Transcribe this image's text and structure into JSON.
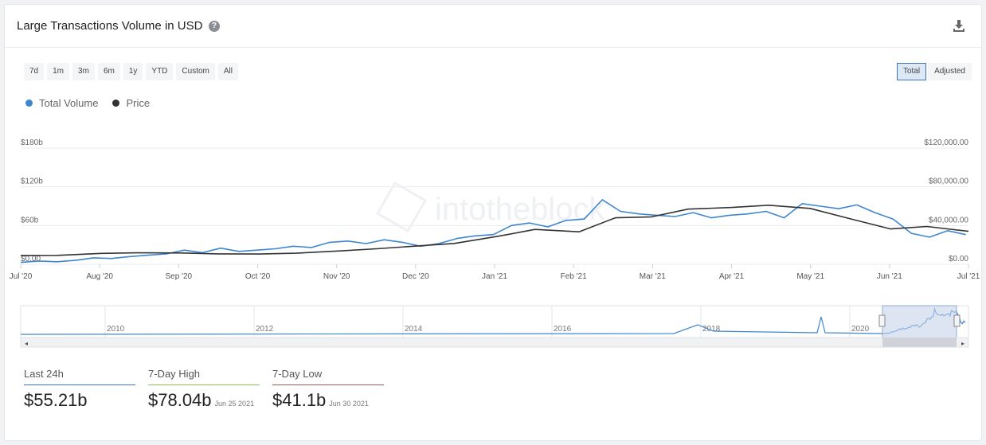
{
  "header": {
    "title": "Large Transactions Volume in USD",
    "help_glyph": "?",
    "download_icon": "download-icon"
  },
  "ranges": [
    "7d",
    "1m",
    "3m",
    "6m",
    "1y",
    "YTD",
    "Custom",
    "All"
  ],
  "toggle": {
    "options": [
      "Total",
      "Adjusted"
    ],
    "active": "Total"
  },
  "legend": [
    {
      "name": "Total Volume",
      "color": "#3f86d0"
    },
    {
      "name": "Price",
      "color": "#333333"
    }
  ],
  "watermark": "intotheblock",
  "colors": {
    "volume": "#3f86d0",
    "price": "#333333",
    "grid": "#e9ebee",
    "navigator_mask": "#c6d3ea"
  },
  "chart_data": {
    "type": "line",
    "x_range": [
      "2020-07-01",
      "2021-07-01"
    ],
    "x_ticks": [
      "Jul '20",
      "Aug '20",
      "Sep '20",
      "Oct '20",
      "Nov '20",
      "Dec '20",
      "Jan '21",
      "Feb '21",
      "Mar '21",
      "Apr '21",
      "May '21",
      "Jun '21",
      "Jul '21"
    ],
    "y_left": {
      "range": [
        0,
        180
      ],
      "ticks": [
        "$0.00",
        "$60b",
        "$120b",
        "$180b"
      ]
    },
    "y_right": {
      "range": [
        0,
        120000
      ],
      "ticks": [
        "$0.00",
        "$40,000.00",
        "$80,000.00",
        "$120,000.00"
      ]
    },
    "series": [
      {
        "name": "Total Volume",
        "axis": "left",
        "x": [
          "2020-07-01",
          "2020-07-08",
          "2020-07-15",
          "2020-07-22",
          "2020-07-29",
          "2020-08-05",
          "2020-08-12",
          "2020-08-19",
          "2020-08-26",
          "2020-09-02",
          "2020-09-09",
          "2020-09-16",
          "2020-09-23",
          "2020-09-30",
          "2020-10-07",
          "2020-10-14",
          "2020-10-21",
          "2020-10-28",
          "2020-11-04",
          "2020-11-11",
          "2020-11-18",
          "2020-11-25",
          "2020-12-02",
          "2020-12-09",
          "2020-12-16",
          "2020-12-23",
          "2020-12-30",
          "2021-01-06",
          "2021-01-13",
          "2021-01-20",
          "2021-01-27",
          "2021-02-03",
          "2021-02-10",
          "2021-02-17",
          "2021-02-24",
          "2021-03-03",
          "2021-03-10",
          "2021-03-17",
          "2021-03-24",
          "2021-03-31",
          "2021-04-07",
          "2021-04-14",
          "2021-04-21",
          "2021-04-28",
          "2021-05-05",
          "2021-05-12",
          "2021-05-19",
          "2021-05-26",
          "2021-06-02",
          "2021-06-09",
          "2021-06-16",
          "2021-06-23",
          "2021-06-30"
        ],
        "values": [
          3,
          5,
          4,
          6,
          10,
          9,
          12,
          14,
          16,
          22,
          18,
          25,
          20,
          22,
          24,
          28,
          26,
          34,
          36,
          32,
          38,
          34,
          28,
          32,
          40,
          44,
          46,
          60,
          64,
          58,
          68,
          70,
          100,
          82,
          78,
          76,
          74,
          80,
          72,
          76,
          78,
          82,
          72,
          94,
          90,
          86,
          92,
          80,
          70,
          48,
          42,
          52,
          46
        ]
      },
      {
        "name": "Price",
        "axis": "right",
        "x": [
          "2020-07-01",
          "2020-07-15",
          "2020-08-01",
          "2020-08-15",
          "2020-09-01",
          "2020-09-15",
          "2020-10-01",
          "2020-10-15",
          "2020-11-01",
          "2020-11-15",
          "2020-12-01",
          "2020-12-15",
          "2021-01-01",
          "2021-01-15",
          "2021-02-01",
          "2021-02-15",
          "2021-03-01",
          "2021-03-15",
          "2021-04-01",
          "2021-04-15",
          "2021-05-01",
          "2021-05-15",
          "2021-06-01",
          "2021-06-15",
          "2021-07-01"
        ],
        "values": [
          9100,
          9200,
          11300,
          11800,
          11700,
          10800,
          10600,
          11400,
          13800,
          16000,
          19000,
          21500,
          29000,
          36000,
          33500,
          48000,
          49000,
          57000,
          58700,
          61000,
          57700,
          48000,
          36500,
          39000,
          34000
        ]
      }
    ],
    "navigator": {
      "x_ticks": [
        "2010",
        "2012",
        "2014",
        "2016",
        "2018",
        "2020"
      ]
    }
  },
  "stats": [
    {
      "label": "Last 24h",
      "value": "$55.21b",
      "date": ""
    },
    {
      "label": "7-Day High",
      "value": "$78.04b",
      "date": "Jun 25 2021"
    },
    {
      "label": "7-Day Low",
      "value": "$41.1b",
      "date": "Jun 30 2021"
    }
  ]
}
